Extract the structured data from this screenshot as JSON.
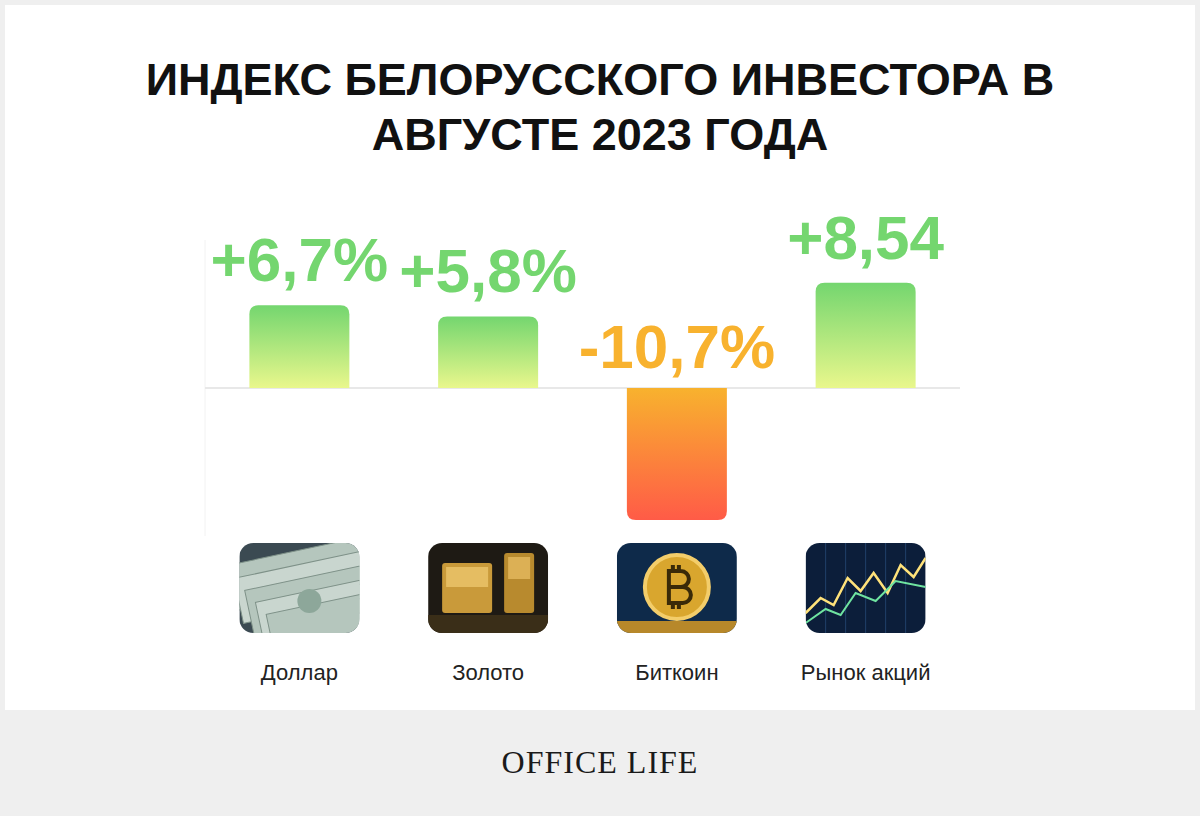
{
  "chart_data": {
    "type": "bar",
    "title": "ИНДЕКС БЕЛОРУССКОГО ИНВЕСТОРА В АВГУСТЕ 2023 ГОДА",
    "categories": [
      "Доллар",
      "Золото",
      "Биткоин",
      "Рынок акций"
    ],
    "values": [
      6.7,
      5.8,
      -10.7,
      8.54
    ],
    "value_labels": [
      "+6,7%",
      "+5,8%",
      "-10,7%",
      "+8,54"
    ],
    "colors": [
      "#74d66f",
      "#74d66f",
      "#f8b22e",
      "#74d66f"
    ],
    "ylim": [
      -12,
      12
    ],
    "yticks": [
      0
    ],
    "tick_labels": false,
    "data_labels": true,
    "grid": false,
    "annotations": [
      "OFFICE LIFE"
    ]
  }
}
